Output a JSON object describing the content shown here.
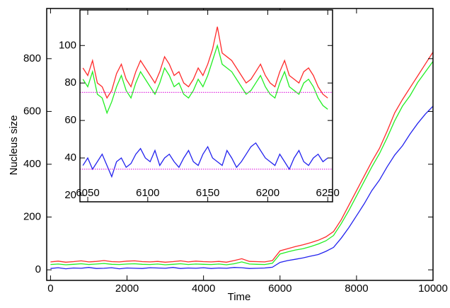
{
  "chart_data": [
    {
      "type": "line",
      "xlabel": "Time",
      "ylabel": "Nucleus size",
      "x": [
        0,
        200,
        400,
        600,
        800,
        1000,
        1200,
        1400,
        1600,
        1800,
        2000,
        2200,
        2400,
        2600,
        2800,
        3000,
        3200,
        3400,
        3600,
        3800,
        4000,
        4200,
        4400,
        4600,
        4800,
        5000,
        5200,
        5400,
        5600,
        5800,
        6000,
        6200,
        6400,
        6600,
        6800,
        7000,
        7200,
        7400,
        7600,
        7800,
        8000,
        8200,
        8400,
        8600,
        8800,
        9000,
        9200,
        9400,
        9600,
        9800,
        10000
      ],
      "series": [
        {
          "color": "#ff2a2a",
          "values": [
            30,
            33,
            29,
            31,
            34,
            30,
            32,
            35,
            31,
            30,
            33,
            34,
            31,
            30,
            32,
            29,
            31,
            34,
            30,
            33,
            31,
            30,
            32,
            29,
            35,
            42,
            32,
            31,
            30,
            35,
            72,
            80,
            88,
            95,
            103,
            112,
            125,
            145,
            190,
            245,
            300,
            355,
            410,
            460,
            525,
            595,
            645,
            690,
            735,
            780,
            825
          ]
        },
        {
          "color": "#22ee22",
          "values": [
            20,
            22,
            19,
            21,
            23,
            20,
            22,
            24,
            21,
            20,
            22,
            23,
            21,
            20,
            22,
            19,
            21,
            23,
            20,
            22,
            21,
            20,
            22,
            19,
            23,
            30,
            22,
            21,
            20,
            25,
            60,
            68,
            75,
            80,
            88,
            98,
            110,
            130,
            175,
            225,
            280,
            335,
            390,
            440,
            500,
            565,
            620,
            660,
            710,
            750,
            790
          ]
        },
        {
          "color": "#2222ee",
          "values": [
            5,
            8,
            4,
            7,
            6,
            9,
            5,
            6,
            8,
            4,
            7,
            6,
            5,
            8,
            7,
            6,
            9,
            5,
            7,
            6,
            8,
            5,
            7,
            6,
            9,
            8,
            5,
            6,
            7,
            10,
            28,
            35,
            40,
            45,
            52,
            58,
            70,
            85,
            120,
            160,
            205,
            250,
            300,
            340,
            390,
            435,
            470,
            515,
            555,
            590,
            620
          ]
        }
      ],
      "xlim": [
        -100,
        10000
      ],
      "ylim": [
        -40,
        990
      ],
      "xticks": [
        0,
        2000,
        4000,
        6000,
        8000,
        10000
      ],
      "yticks": [
        0,
        200,
        400,
        600,
        800
      ]
    },
    {
      "type": "line",
      "x": [
        6046,
        6050,
        6054,
        6058,
        6062,
        6066,
        6070,
        6074,
        6078,
        6082,
        6086,
        6090,
        6094,
        6098,
        6102,
        6106,
        6110,
        6114,
        6118,
        6122,
        6126,
        6130,
        6134,
        6138,
        6142,
        6146,
        6150,
        6154,
        6158,
        6162,
        6166,
        6170,
        6174,
        6178,
        6182,
        6186,
        6190,
        6194,
        6198,
        6202,
        6206,
        6210,
        6214,
        6218,
        6222,
        6226,
        6230,
        6234,
        6238,
        6242,
        6246,
        6250
      ],
      "series": [
        {
          "color": "#ff2a2a",
          "values": [
            88,
            84,
            92,
            80,
            78,
            72,
            76,
            85,
            90,
            82,
            78,
            86,
            92,
            88,
            84,
            80,
            86,
            94,
            90,
            84,
            86,
            80,
            78,
            82,
            88,
            84,
            90,
            98,
            110,
            96,
            94,
            92,
            88,
            84,
            80,
            82,
            86,
            90,
            84,
            80,
            78,
            86,
            92,
            84,
            82,
            80,
            86,
            88,
            84,
            78,
            74,
            72
          ]
        },
        {
          "color": "#22ee22",
          "values": [
            82,
            78,
            86,
            74,
            72,
            64,
            70,
            78,
            84,
            76,
            72,
            80,
            86,
            82,
            78,
            74,
            80,
            88,
            84,
            78,
            80,
            74,
            72,
            76,
            82,
            78,
            84,
            92,
            100,
            90,
            88,
            86,
            82,
            78,
            74,
            76,
            80,
            84,
            78,
            74,
            72,
            80,
            86,
            78,
            76,
            74,
            80,
            82,
            78,
            72,
            68,
            66
          ]
        },
        {
          "color": "#2222ee",
          "values": [
            36,
            40,
            34,
            38,
            42,
            36,
            30,
            38,
            40,
            35,
            37,
            42,
            45,
            40,
            38,
            44,
            36,
            40,
            42,
            38,
            35,
            40,
            44,
            38,
            36,
            42,
            46,
            40,
            38,
            36,
            44,
            40,
            35,
            38,
            42,
            46,
            48,
            44,
            40,
            38,
            36,
            42,
            38,
            34,
            40,
            44,
            38,
            36,
            40,
            42,
            38,
            40
          ]
        }
      ],
      "hlines": [
        75,
        34
      ],
      "hline_color": "#dd22dd",
      "xlim": [
        6043.5,
        6254
      ],
      "ylim": [
        16.6,
        119
      ],
      "xticks": [
        6050,
        6100,
        6150,
        6200,
        6250
      ],
      "yticks": [
        20,
        40,
        60,
        80,
        100
      ]
    }
  ]
}
